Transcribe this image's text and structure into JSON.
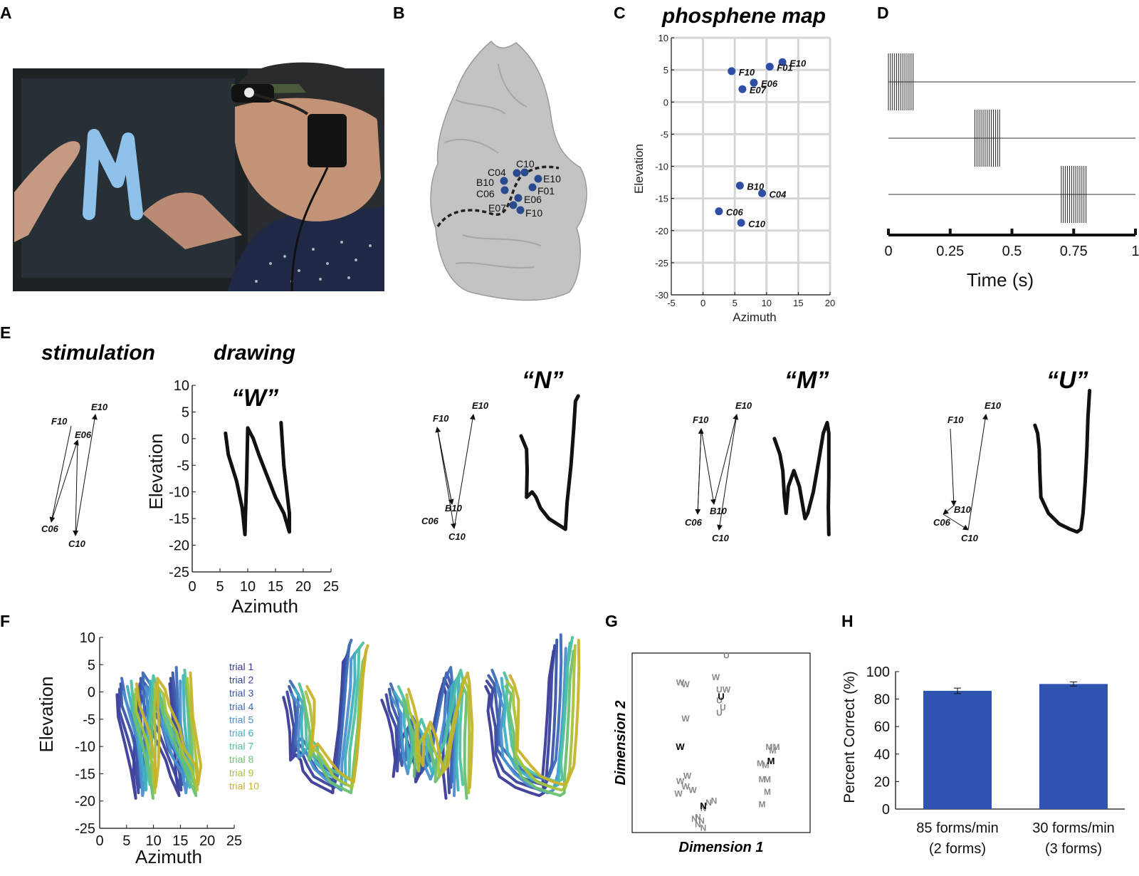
{
  "panels": {
    "A": {
      "label": "A"
    },
    "B": {
      "label": "B",
      "electrodes": [
        {
          "name": "C04"
        },
        {
          "name": "C10"
        },
        {
          "name": "B10"
        },
        {
          "name": "E10"
        },
        {
          "name": "C06"
        },
        {
          "name": "F01"
        },
        {
          "name": "E06"
        },
        {
          "name": "E07"
        },
        {
          "name": "F10"
        }
      ]
    },
    "C": {
      "label": "C",
      "title": "phosphene map"
    },
    "D": {
      "label": "D"
    },
    "E": {
      "label": "E",
      "stim_title": "stimulation",
      "draw_title": "drawing",
      "letters": [
        "“W”",
        "“N”",
        "“M”",
        "“U”"
      ]
    },
    "F": {
      "label": "F",
      "trials": [
        "trial 1",
        "trial 2",
        "trial 3",
        "trial 4",
        "trial 5",
        "trial 6",
        "trial 7",
        "trial 8",
        "trial 9",
        "trial 10"
      ],
      "trial_colors": [
        "#3b3b98",
        "#38439e",
        "#3a55a8",
        "#3d6cb8",
        "#4a90d0",
        "#3fb0c0",
        "#4fc0a0",
        "#6cc070",
        "#a6c23a",
        "#c8b22a"
      ]
    },
    "G": {
      "label": "G"
    },
    "H": {
      "label": "H"
    }
  },
  "chart_data": [
    {
      "panel": "C",
      "type": "scatter",
      "title": "phosphene map",
      "xlabel": "Azimuth",
      "ylabel": "Elevation",
      "xlim": [
        -5,
        20
      ],
      "ylim": [
        -30,
        10
      ],
      "xticks": [
        -5,
        0,
        5,
        10,
        15,
        20
      ],
      "yticks": [
        10,
        5,
        0,
        -5,
        -10,
        -15,
        -20,
        -25,
        -30
      ],
      "grid": true,
      "points": [
        {
          "label": "E10",
          "x": 12.5,
          "y": 6.2
        },
        {
          "label": "F01",
          "x": 10.5,
          "y": 5.5
        },
        {
          "label": "F10",
          "x": 4.5,
          "y": 4.8
        },
        {
          "label": "E06",
          "x": 8.0,
          "y": 3.0
        },
        {
          "label": "E07",
          "x": 6.2,
          "y": 2.0
        },
        {
          "label": "B10",
          "x": 5.8,
          "y": -13.0
        },
        {
          "label": "C04",
          "x": 9.3,
          "y": -14.2
        },
        {
          "label": "C06",
          "x": 2.5,
          "y": -17.0
        },
        {
          "label": "C10",
          "x": 6.0,
          "y": -18.8
        }
      ]
    },
    {
      "panel": "D",
      "type": "raster",
      "xlabel": "Time (s)",
      "xticks": [
        "0",
        "0.25",
        "0.5",
        "0.75",
        "1"
      ],
      "trains": [
        {
          "start": 0.0,
          "end": 0.1
        },
        {
          "start": 0.35,
          "end": 0.45
        },
        {
          "start": 0.7,
          "end": 0.8
        }
      ]
    },
    {
      "panel": "E",
      "type": "line",
      "xlabel": "Azimuth",
      "ylabel": "Elevation",
      "xlim": [
        0,
        25
      ],
      "ylim": [
        -25,
        10
      ],
      "xticks": [
        0,
        5,
        10,
        15,
        20,
        25
      ],
      "yticks": [
        10,
        5,
        0,
        -5,
        -10,
        -15,
        -20,
        -25
      ],
      "stim_labels": {
        "W": [
          "F10",
          "E06",
          "E10",
          "C06",
          "C10"
        ],
        "N": [
          "F10",
          "E10",
          "C06",
          "B10",
          "C10"
        ],
        "M": [
          "F10",
          "E10",
          "C06",
          "B10",
          "C10"
        ],
        "U": [
          "F10",
          "E10",
          "C06",
          "B10",
          "C10"
        ]
      },
      "drawings": {
        "W": [
          [
            6,
            1
          ],
          [
            6.5,
            -3
          ],
          [
            8,
            -8
          ],
          [
            9,
            -13
          ],
          [
            9.5,
            -18
          ],
          [
            9.6,
            -14
          ],
          [
            9.8,
            -8
          ],
          [
            9.9,
            -3
          ],
          [
            10,
            2
          ],
          [
            11,
            0
          ],
          [
            12,
            -3
          ],
          [
            13.5,
            -7
          ],
          [
            15,
            -11
          ],
          [
            16.5,
            -14
          ],
          [
            17.5,
            -17.5
          ],
          [
            17.5,
            -14
          ],
          [
            16.5,
            -5
          ],
          [
            16,
            3
          ]
        ],
        "N": [
          [
            0.5,
            0.5
          ],
          [
            1.5,
            -2
          ],
          [
            1.6,
            -6
          ],
          [
            1.5,
            -11
          ],
          [
            2.5,
            -10
          ],
          [
            3.2,
            -11
          ],
          [
            4,
            -13
          ],
          [
            5.5,
            -15
          ],
          [
            7,
            -16
          ],
          [
            8.5,
            -17
          ],
          [
            8.8,
            -12
          ],
          [
            9.5,
            -5
          ],
          [
            10,
            2
          ],
          [
            10.3,
            7
          ],
          [
            10.8,
            8
          ]
        ],
        "M": [
          [
            0.5,
            0
          ],
          [
            1.5,
            -3
          ],
          [
            2,
            -6
          ],
          [
            2.3,
            -11
          ],
          [
            2.6,
            -14
          ],
          [
            3,
            -9
          ],
          [
            4,
            -6
          ],
          [
            5,
            -9
          ],
          [
            5.5,
            -12
          ],
          [
            6,
            -15
          ],
          [
            6.5,
            -14
          ],
          [
            7.5,
            -10
          ],
          [
            8.5,
            -4
          ],
          [
            9.3,
            1
          ],
          [
            10,
            3
          ],
          [
            10.3,
            1
          ],
          [
            10.3,
            -7
          ],
          [
            10.2,
            -13
          ],
          [
            10.3,
            -18
          ]
        ],
        "U": [
          [
            0.5,
            2.5
          ],
          [
            1,
            1
          ],
          [
            1.3,
            -2
          ],
          [
            1.4,
            -6
          ],
          [
            1.6,
            -11
          ],
          [
            3,
            -14
          ],
          [
            5,
            -16
          ],
          [
            7,
            -17
          ],
          [
            8.3,
            -17.5
          ],
          [
            9,
            -17
          ],
          [
            9.4,
            -14
          ],
          [
            9.8,
            -8
          ],
          [
            10.1,
            -2
          ],
          [
            10.3,
            4
          ],
          [
            10.6,
            9
          ]
        ]
      }
    },
    {
      "panel": "F",
      "type": "line",
      "xlabel": "Azimuth",
      "ylabel": "Elevation",
      "xlim": [
        0,
        25
      ],
      "ylim": [
        -25,
        10
      ],
      "xticks": [
        0,
        5,
        10,
        15,
        20,
        25
      ],
      "yticks": [
        10,
        5,
        0,
        -5,
        -10,
        -15,
        -20,
        -25
      ],
      "series": [
        "trial 1",
        "trial 2",
        "trial 3",
        "trial 4",
        "trial 5",
        "trial 6",
        "trial 7",
        "trial 8",
        "trial 9",
        "trial 10"
      ]
    },
    {
      "panel": "G",
      "type": "scatter",
      "xlabel": "Dimension 1",
      "ylabel": "Dimension 2",
      "points": [
        {
          "t": "U",
          "x": 0.53,
          "y": 0.97
        },
        {
          "t": "W",
          "x": 0.47,
          "y": 0.85
        },
        {
          "t": "U",
          "x": 0.49,
          "y": 0.78
        },
        {
          "t": "W",
          "x": 0.53,
          "y": 0.78
        },
        {
          "t": "U",
          "x": 0.49,
          "y": 0.72
        },
        {
          "t": "U",
          "x": 0.51,
          "y": 0.68
        },
        {
          "t": "U",
          "x": 0.49,
          "y": 0.65
        },
        {
          "t": "W",
          "x": 0.27,
          "y": 0.82
        },
        {
          "t": "W",
          "x": 0.3,
          "y": 0.81
        },
        {
          "t": "W",
          "x": 0.3,
          "y": 0.62
        },
        {
          "t": "M",
          "x": 0.77,
          "y": 0.46
        },
        {
          "t": "M",
          "x": 0.81,
          "y": 0.46
        },
        {
          "t": "M",
          "x": 0.79,
          "y": 0.44
        },
        {
          "t": "M",
          "x": 0.72,
          "y": 0.37
        },
        {
          "t": "M",
          "x": 0.75,
          "y": 0.36
        },
        {
          "t": "M",
          "x": 0.73,
          "y": 0.28
        },
        {
          "t": "M",
          "x": 0.76,
          "y": 0.28
        },
        {
          "t": "M",
          "x": 0.76,
          "y": 0.21
        },
        {
          "t": "M",
          "x": 0.73,
          "y": 0.14
        },
        {
          "t": "W",
          "x": 0.31,
          "y": 0.3
        },
        {
          "t": "W",
          "x": 0.27,
          "y": 0.27
        },
        {
          "t": "W",
          "x": 0.3,
          "y": 0.24
        },
        {
          "t": "W",
          "x": 0.34,
          "y": 0.22
        },
        {
          "t": "W",
          "x": 0.26,
          "y": 0.2
        },
        {
          "t": "N",
          "x": 0.46,
          "y": 0.16
        },
        {
          "t": "N",
          "x": 0.43,
          "y": 0.15
        },
        {
          "t": "N",
          "x": 0.4,
          "y": 0.12
        },
        {
          "t": "N",
          "x": 0.37,
          "y": 0.07
        },
        {
          "t": "N",
          "x": 0.35,
          "y": 0.06
        },
        {
          "t": "N",
          "x": 0.39,
          "y": 0.05
        },
        {
          "t": "N",
          "x": 0.37,
          "y": 0.03
        },
        {
          "t": "N",
          "x": 0.4,
          "y": 0.01
        }
      ],
      "centroids": [
        {
          "t": "U",
          "x": 0.5,
          "y": 0.74
        },
        {
          "t": "W",
          "x": 0.27,
          "y": 0.46
        },
        {
          "t": "M",
          "x": 0.78,
          "y": 0.38
        },
        {
          "t": "N",
          "x": 0.4,
          "y": 0.13
        }
      ]
    },
    {
      "panel": "H",
      "type": "bar",
      "ylabel": "Percent Correct (%)",
      "ylim": [
        0,
        100
      ],
      "yticks": [
        0,
        20,
        40,
        60,
        80,
        100
      ],
      "categories": [
        "85 forms/min\n(2 forms)",
        "30 forms/min\n(3 forms)"
      ],
      "categories_lines": [
        [
          "85 forms/min",
          "(2 forms)"
        ],
        [
          "30 forms/min",
          "(3 forms)"
        ]
      ],
      "values": [
        86,
        91
      ],
      "errors": [
        2,
        1.5
      ],
      "color": "#2f54b0"
    }
  ]
}
